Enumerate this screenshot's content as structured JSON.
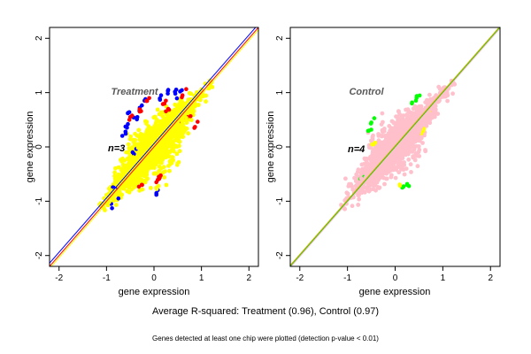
{
  "figure": {
    "caption": "Average R-squared: Treatment (0.96), Control (0.97)",
    "note": "Genes detected at least one chip were plotted (detection p-value < 0.01)"
  },
  "chart_data": [
    {
      "type": "scatter",
      "title": "Treatment",
      "xlabel": "gene expression",
      "ylabel": "gene expression",
      "xlim": [
        -2.2,
        2.2
      ],
      "ylim": [
        -2.2,
        2.2
      ],
      "xticks": [
        -2,
        -1,
        0,
        1,
        2
      ],
      "yticks": [
        -2,
        -1,
        0,
        1,
        2
      ],
      "annotation": {
        "text": "n=3",
        "x": -0.95,
        "y": 0.0
      },
      "reference_lines": [
        {
          "color": "#ff0000",
          "slope": 1.0,
          "intercept": 0.0
        },
        {
          "color": "#0000ff",
          "slope": 1.0,
          "intercept": 0.06
        },
        {
          "color": "#ffff00",
          "slope": 1.0,
          "intercept": -0.04
        }
      ],
      "series": [
        {
          "color": "#0000ff",
          "spread": 0.2,
          "points": [
            [
              -0.55,
              0.62
            ],
            [
              -0.3,
              0.72
            ],
            [
              -0.55,
              0.42
            ],
            [
              -0.6,
              0.28
            ],
            [
              0.3,
              1.05
            ],
            [
              0.45,
              0.98
            ],
            [
              -0.2,
              0.85
            ],
            [
              0.55,
              1.02
            ],
            [
              -0.85,
              -0.75
            ],
            [
              -0.75,
              -0.95
            ],
            [
              0.05,
              -0.85
            ],
            [
              -0.45,
              -0.1
            ],
            [
              -0.35,
              0.55
            ],
            [
              0.15,
              0.95
            ]
          ]
        },
        {
          "color": "#ff0000",
          "spread": 0.15,
          "points": [
            [
              0.05,
              -0.65
            ],
            [
              0.55,
              0.5
            ],
            [
              -0.25,
              -0.7
            ],
            [
              0.1,
              -0.55
            ],
            [
              0.7,
              0.55
            ],
            [
              0.85,
              0.35
            ],
            [
              -0.3,
              0.65
            ],
            [
              -0.5,
              0.55
            ],
            [
              0.25,
              0.85
            ],
            [
              0.6,
              0.95
            ],
            [
              -0.1,
              0.9
            ],
            [
              0.3,
              0.7
            ]
          ]
        },
        {
          "color": "#ffff00",
          "spread": 0.12,
          "points": [
            [
              0.5,
              -0.3
            ],
            [
              0.4,
              -0.25
            ],
            [
              0.05,
              -0.75
            ],
            [
              -0.2,
              -0.4
            ],
            [
              0.45,
              0.25
            ],
            [
              0.55,
              0.3
            ]
          ]
        }
      ],
      "cloud_color": "#ffff00"
    },
    {
      "type": "scatter",
      "title": "Control",
      "xlabel": "gene expression",
      "ylabel": "gene expression",
      "xlim": [
        -2.2,
        2.2
      ],
      "ylim": [
        -2.2,
        2.2
      ],
      "xticks": [
        -2,
        -1,
        0,
        1,
        2
      ],
      "yticks": [
        -2,
        -1,
        0,
        1,
        2
      ],
      "annotation": {
        "text": "n=4",
        "x": -0.95,
        "y": -0.02
      },
      "reference_lines": [
        {
          "color": "#00c800",
          "slope": 1.0,
          "intercept": 0.0
        },
        {
          "color": "#c8b400",
          "slope": 1.0,
          "intercept": 0.02
        },
        {
          "color": "#ffc0cb",
          "slope": 1.0,
          "intercept": -0.02
        }
      ],
      "series": [
        {
          "color": "#00ff00",
          "spread": 0.15,
          "points": [
            [
              -0.55,
              0.3
            ],
            [
              -0.5,
              0.45
            ],
            [
              0.15,
              -0.75
            ],
            [
              0.45,
              0.9
            ],
            [
              -0.65,
              -0.55
            ],
            [
              0.25,
              -0.7
            ],
            [
              0.35,
              0.8
            ]
          ]
        },
        {
          "color": "#ffff00",
          "spread": 0.12,
          "points": [
            [
              0.55,
              0.25
            ],
            [
              -0.45,
              0.05
            ],
            [
              0.65,
              0.6
            ],
            [
              0.1,
              -0.7
            ]
          ]
        }
      ],
      "cloud_color": "#ffc0cb"
    }
  ]
}
